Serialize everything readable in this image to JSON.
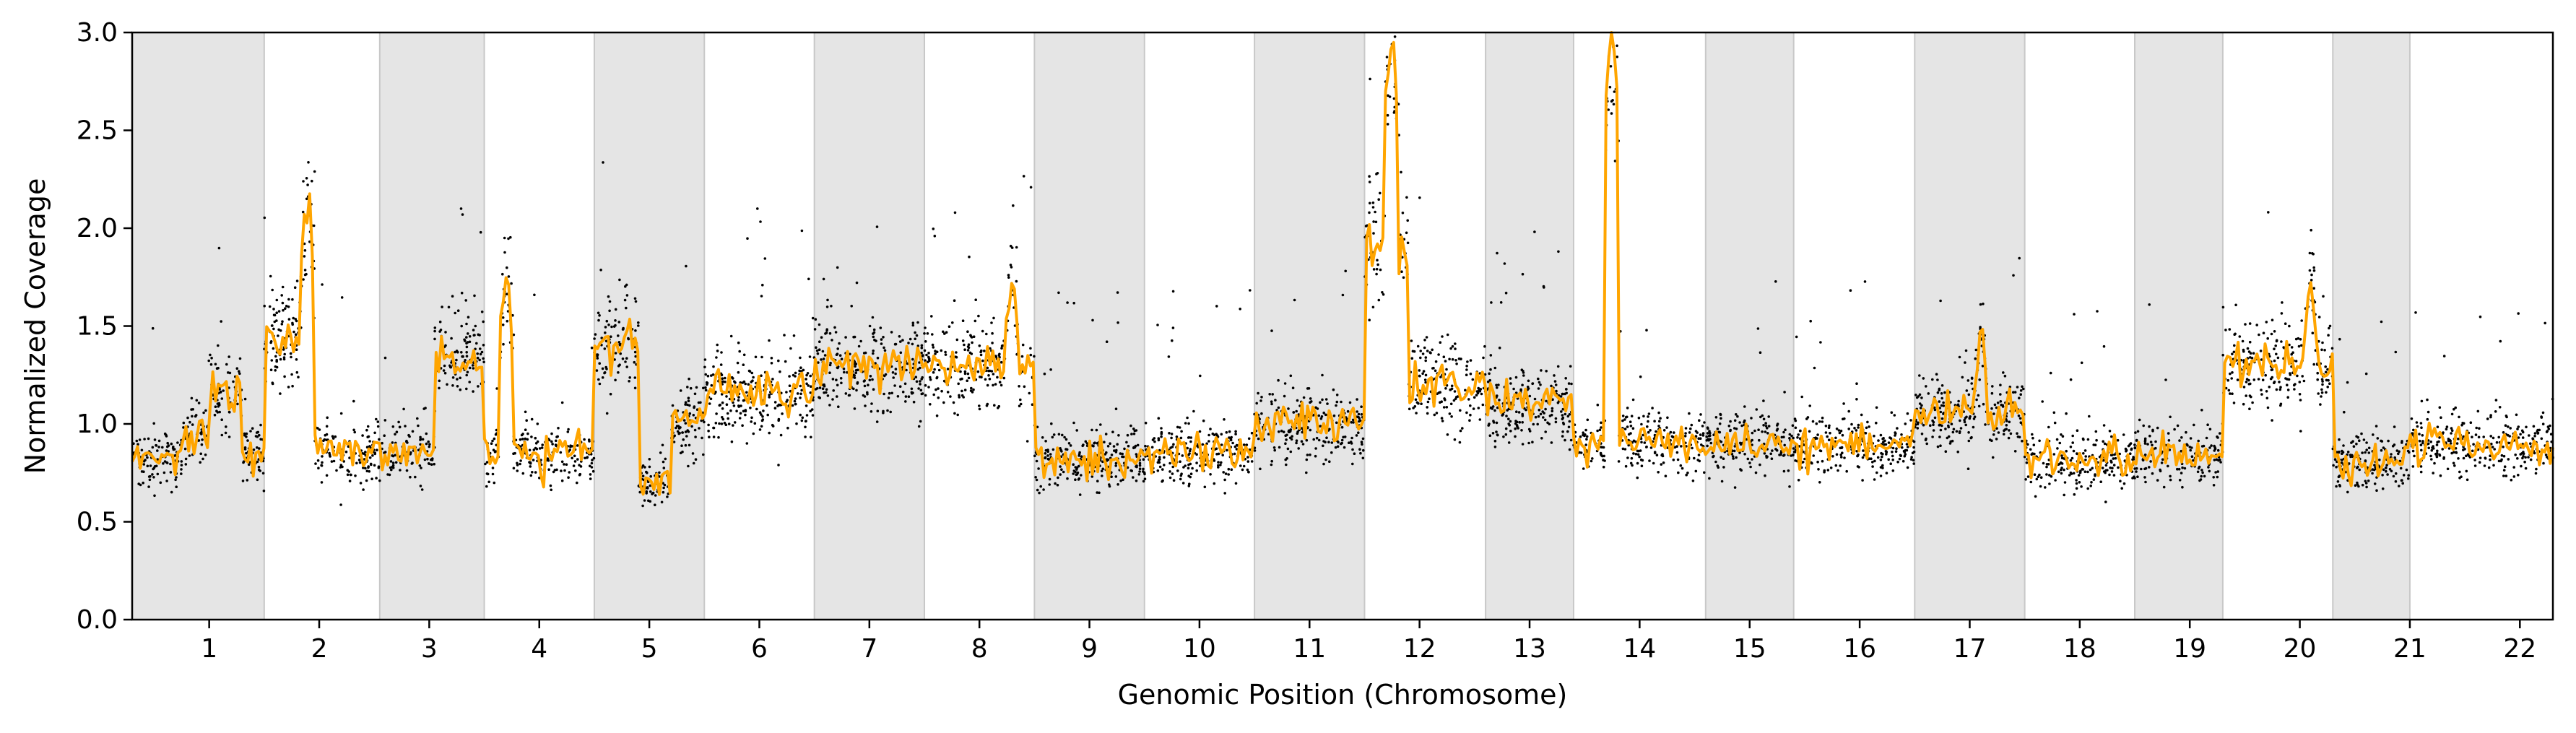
{
  "chart_data": {
    "type": "scatter",
    "title": "",
    "xlabel": "Genomic Position (Chromosome)",
    "ylabel": "Normalized Coverage",
    "ylim": [
      0,
      3.0
    ],
    "y_ticks": [
      "0.0",
      "0.5",
      "1.0",
      "1.5",
      "2.0",
      "2.5",
      "3.0"
    ],
    "grid": false,
    "legend": "none",
    "colors": {
      "points": "#000000",
      "line": "#FFA500",
      "shade": "#E5E5E5",
      "boundary": "#C8C8C8"
    },
    "x_range": [
      0.3,
      22.3
    ],
    "chromosomes": [
      {
        "label": "1",
        "start": 0.3,
        "end": 1.5,
        "shaded": true,
        "base": 0.85
      },
      {
        "label": "2",
        "start": 1.5,
        "end": 2.55,
        "shaded": false,
        "base": 0.85
      },
      {
        "label": "3",
        "start": 2.55,
        "end": 3.5,
        "shaded": true,
        "base": 1.15
      },
      {
        "label": "4",
        "start": 3.5,
        "end": 4.5,
        "shaded": false,
        "base": 0.82
      },
      {
        "label": "5",
        "start": 4.5,
        "end": 5.5,
        "shaded": true,
        "base": 0.95
      },
      {
        "label": "6",
        "start": 5.5,
        "end": 6.5,
        "shaded": false,
        "base": 1.15
      },
      {
        "label": "7",
        "start": 6.5,
        "end": 7.5,
        "shaded": true,
        "base": 1.3
      },
      {
        "label": "8",
        "start": 7.5,
        "end": 8.5,
        "shaded": false,
        "base": 1.3
      },
      {
        "label": "9",
        "start": 8.5,
        "end": 9.5,
        "shaded": true,
        "base": 0.82
      },
      {
        "label": "10",
        "start": 9.5,
        "end": 10.5,
        "shaded": false,
        "base": 0.85
      },
      {
        "label": "11",
        "start": 10.5,
        "end": 11.5,
        "shaded": true,
        "base": 0.95
      },
      {
        "label": "12",
        "start": 11.5,
        "end": 12.6,
        "shaded": false,
        "base": 1.3
      },
      {
        "label": "13",
        "start": 12.6,
        "end": 13.4,
        "shaded": true,
        "base": 1.1
      },
      {
        "label": "14",
        "start": 13.4,
        "end": 14.6,
        "shaded": false,
        "base": 0.9
      },
      {
        "label": "15",
        "start": 14.6,
        "end": 15.4,
        "shaded": true,
        "base": 0.9
      },
      {
        "label": "16",
        "start": 15.4,
        "end": 16.5,
        "shaded": false,
        "base": 0.9
      },
      {
        "label": "17",
        "start": 16.5,
        "end": 17.5,
        "shaded": true,
        "base": 1.0
      },
      {
        "label": "18",
        "start": 17.5,
        "end": 18.5,
        "shaded": false,
        "base": 0.82
      },
      {
        "label": "19",
        "start": 18.5,
        "end": 19.3,
        "shaded": true,
        "base": 0.85
      },
      {
        "label": "20",
        "start": 19.3,
        "end": 20.3,
        "shaded": false,
        "base": 1.2
      },
      {
        "label": "21",
        "start": 20.3,
        "end": 21.0,
        "shaded": true,
        "base": 0.75
      },
      {
        "label": "22",
        "start": 21.0,
        "end": 22.3,
        "shaded": false,
        "base": 0.9
      }
    ],
    "x_ticks": [
      {
        "label": "1",
        "x": 1
      },
      {
        "label": "2",
        "x": 2
      },
      {
        "label": "3",
        "x": 3
      },
      {
        "label": "4",
        "x": 4
      },
      {
        "label": "5",
        "x": 5
      },
      {
        "label": "6",
        "x": 6
      },
      {
        "label": "7",
        "x": 7
      },
      {
        "label": "8",
        "x": 8
      },
      {
        "label": "9",
        "x": 9
      },
      {
        "label": "10",
        "x": 10
      },
      {
        "label": "11",
        "x": 11
      },
      {
        "label": "12",
        "x": 12
      },
      {
        "label": "13",
        "x": 13
      },
      {
        "label": "14",
        "x": 14
      },
      {
        "label": "15",
        "x": 15
      },
      {
        "label": "16",
        "x": 16
      },
      {
        "label": "17",
        "x": 17
      },
      {
        "label": "18",
        "x": 18
      },
      {
        "label": "19",
        "x": 19
      },
      {
        "label": "20",
        "x": 20
      },
      {
        "label": "21",
        "x": 21
      },
      {
        "label": "22",
        "x": 22
      }
    ],
    "segments": [
      {
        "x": [
          0.3,
          0.75
        ],
        "y": 0.82
      },
      {
        "x": [
          0.75,
          1.0
        ],
        "y": 0.95
      },
      {
        "x": [
          1.0,
          1.3
        ],
        "y": 1.15
      },
      {
        "x": [
          1.3,
          1.5
        ],
        "y": 0.85
      },
      {
        "x": [
          1.5,
          1.85
        ],
        "y": 1.45
      },
      {
        "x": [
          1.85,
          2.55
        ],
        "y": 0.85
      },
      {
        "x": [
          2.55,
          3.05
        ],
        "y": 0.85
      },
      {
        "x": [
          3.05,
          3.5
        ],
        "y": 1.35
      },
      {
        "x": [
          3.5,
          4.5
        ],
        "y": 0.85
      },
      {
        "x": [
          4.5,
          4.9
        ],
        "y": 1.4
      },
      {
        "x": [
          4.9,
          5.2
        ],
        "y": 0.7
      },
      {
        "x": [
          5.2,
          5.5
        ],
        "y": 1.0
      },
      {
        "x": [
          5.5,
          6.5
        ],
        "y": 1.15
      },
      {
        "x": [
          6.5,
          7.5
        ],
        "y": 1.3
      },
      {
        "x": [
          7.5,
          8.5
        ],
        "y": 1.3
      },
      {
        "x": [
          8.5,
          9.5
        ],
        "y": 0.82
      },
      {
        "x": [
          9.5,
          10.5
        ],
        "y": 0.85
      },
      {
        "x": [
          10.5,
          11.5
        ],
        "y": 1.0
      },
      {
        "x": [
          11.5,
          11.9
        ],
        "y": 1.9
      },
      {
        "x": [
          11.9,
          12.6
        ],
        "y": 1.2
      },
      {
        "x": [
          12.6,
          13.4
        ],
        "y": 1.1
      },
      {
        "x": [
          13.4,
          14.6
        ],
        "y": 0.9
      },
      {
        "x": [
          14.6,
          15.4
        ],
        "y": 0.9
      },
      {
        "x": [
          15.4,
          16.5
        ],
        "y": 0.9
      },
      {
        "x": [
          16.5,
          17.5
        ],
        "y": 1.05
      },
      {
        "x": [
          17.5,
          18.5
        ],
        "y": 0.82
      },
      {
        "x": [
          18.5,
          19.3
        ],
        "y": 0.85
      },
      {
        "x": [
          19.3,
          20.3
        ],
        "y": 1.3
      },
      {
        "x": [
          20.3,
          21.0
        ],
        "y": 0.8
      },
      {
        "x": [
          21.0,
          22.3
        ],
        "y": 0.9
      }
    ],
    "peaks": [
      {
        "x": 1.9,
        "y": 2.2
      },
      {
        "x": 3.7,
        "y": 1.8
      },
      {
        "x": 8.3,
        "y": 1.8
      },
      {
        "x": 11.75,
        "y": 3.0
      },
      {
        "x": 13.75,
        "y": 3.0
      },
      {
        "x": 17.1,
        "y": 1.5
      },
      {
        "x": 20.1,
        "y": 1.75
      }
    ]
  }
}
